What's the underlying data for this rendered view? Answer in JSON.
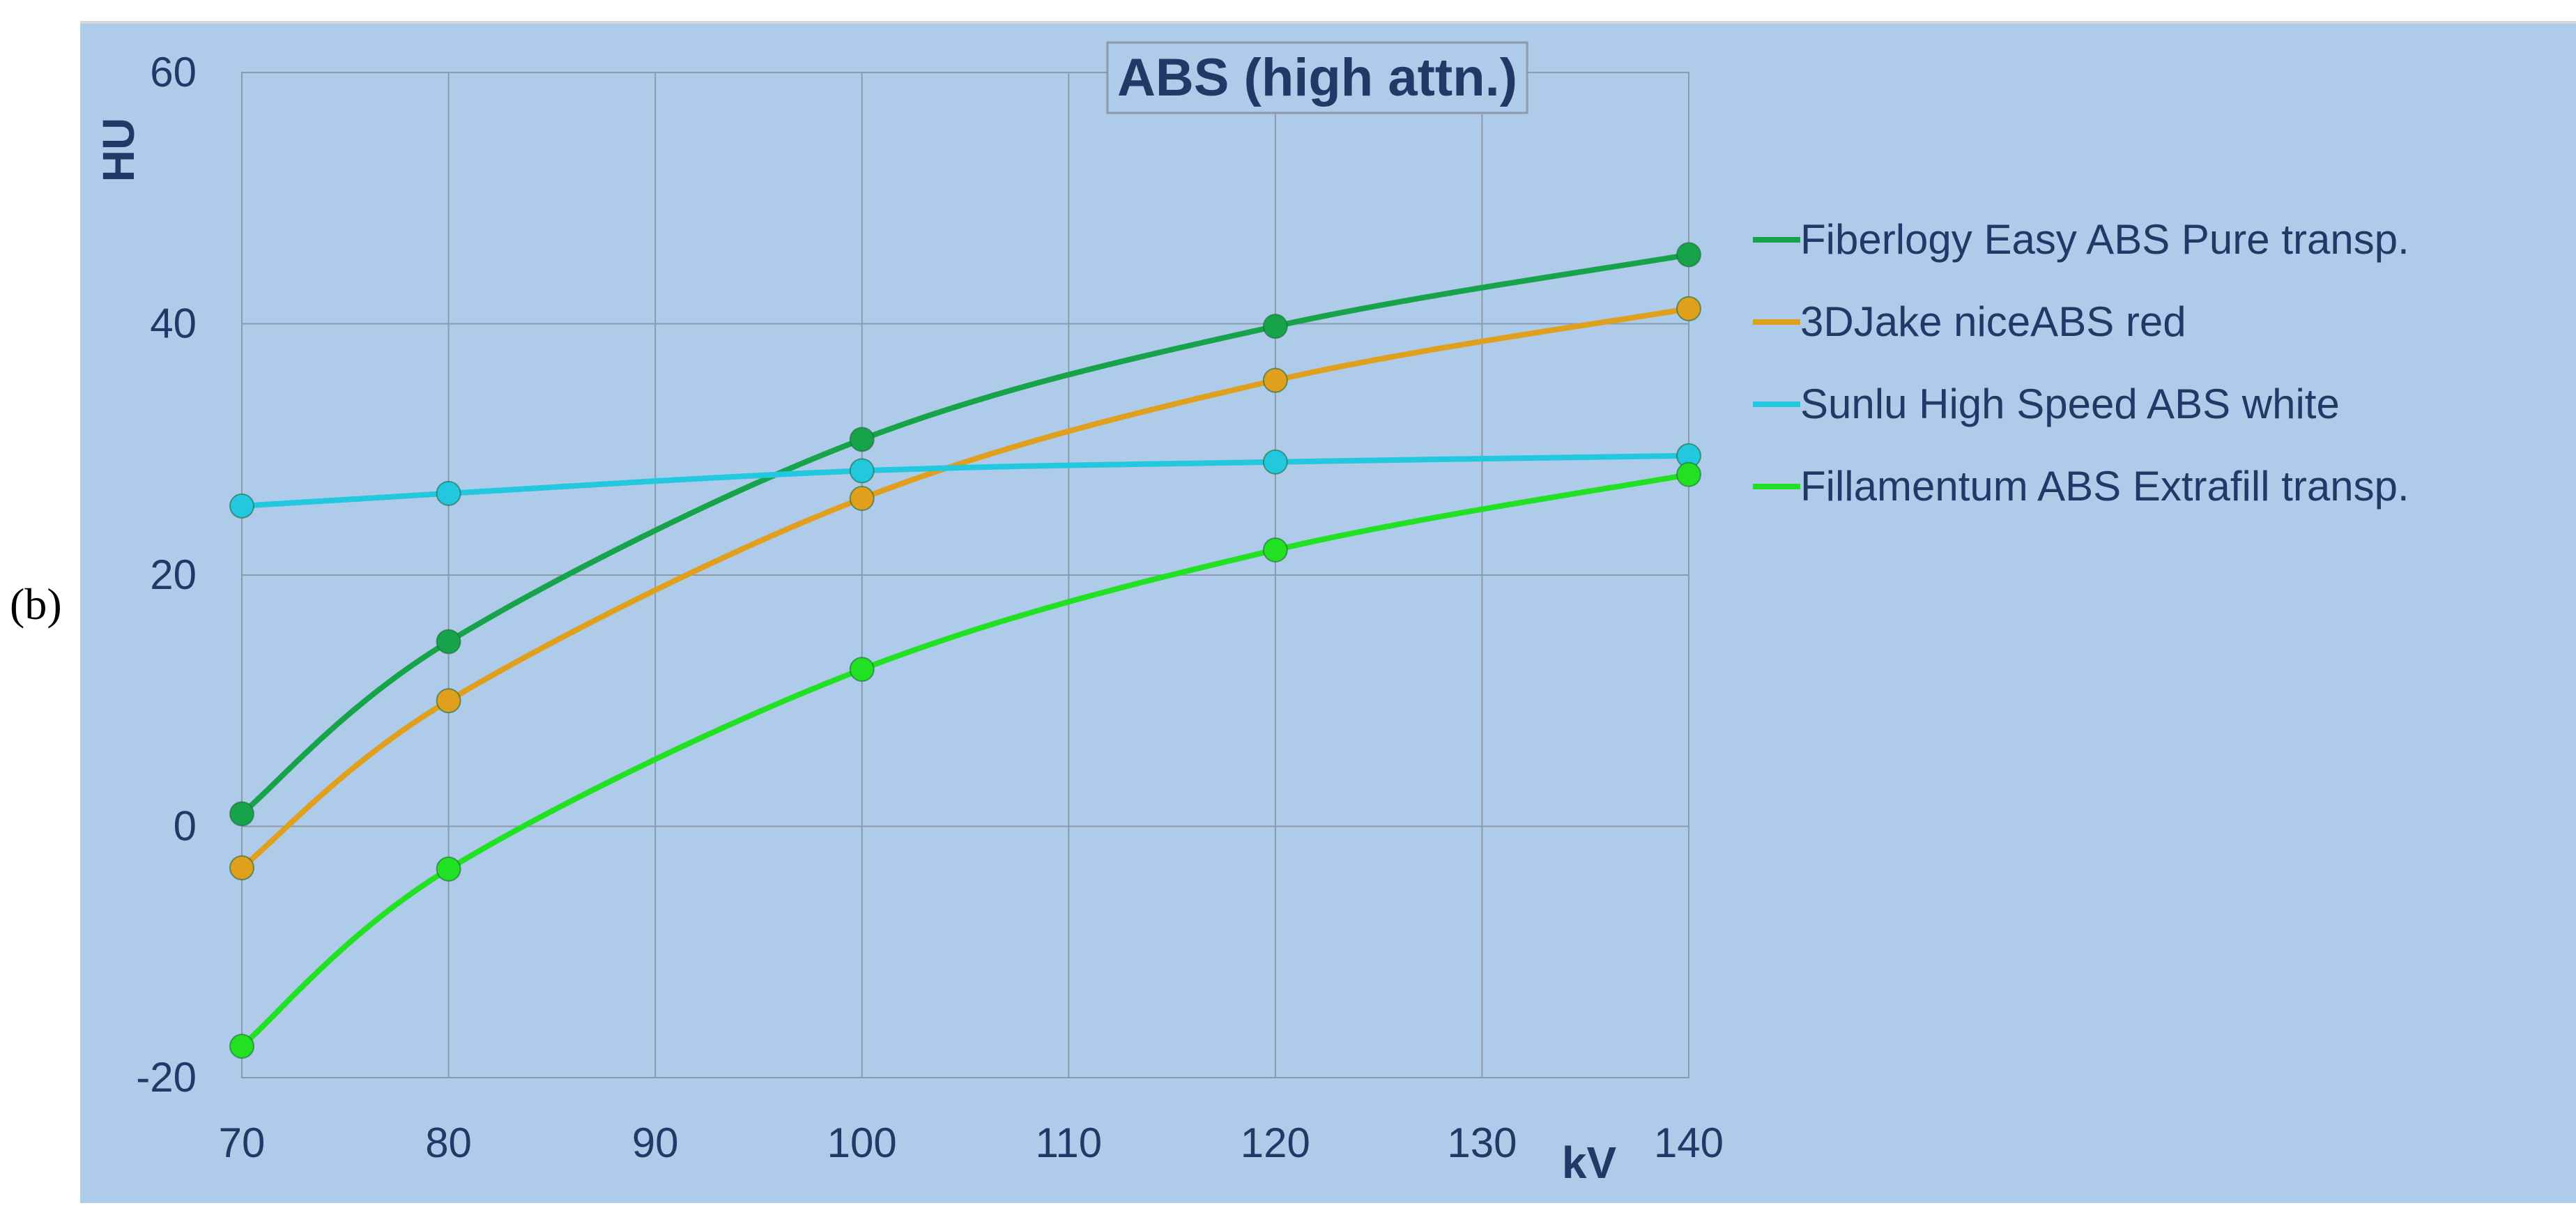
{
  "panel_label": "(b)",
  "chart_data": {
    "type": "line",
    "title": "ABS (high attn.)",
    "xlabel": "kV",
    "ylabel": "HU",
    "xlim": [
      70,
      140
    ],
    "ylim": [
      -20,
      60
    ],
    "x_ticks": [
      70,
      80,
      90,
      100,
      110,
      120,
      130,
      140
    ],
    "y_ticks": [
      -20,
      0,
      20,
      40,
      60
    ],
    "grid": true,
    "legend_position": "right",
    "x": [
      70,
      80,
      100,
      120,
      140
    ],
    "series": [
      {
        "name": "Fiberlogy Easy ABS Pure transp.",
        "color": "#17a34a",
        "values": [
          1,
          14.7,
          30.8,
          39.8,
          45.5
        ]
      },
      {
        "name": "3DJake niceABS red",
        "color": "#e0a01e",
        "values": [
          -3.3,
          10,
          26.1,
          35.5,
          41.2
        ]
      },
      {
        "name": "Sunlu High Speed ABS white",
        "color": "#22c8e0",
        "values": [
          25.5,
          26.5,
          28.3,
          29,
          29.5
        ]
      },
      {
        "name": "Fillamentum ABS Extrafill transp.",
        "color": "#22e022",
        "values": [
          -17.5,
          -3.4,
          12.5,
          22,
          28
        ]
      }
    ]
  }
}
